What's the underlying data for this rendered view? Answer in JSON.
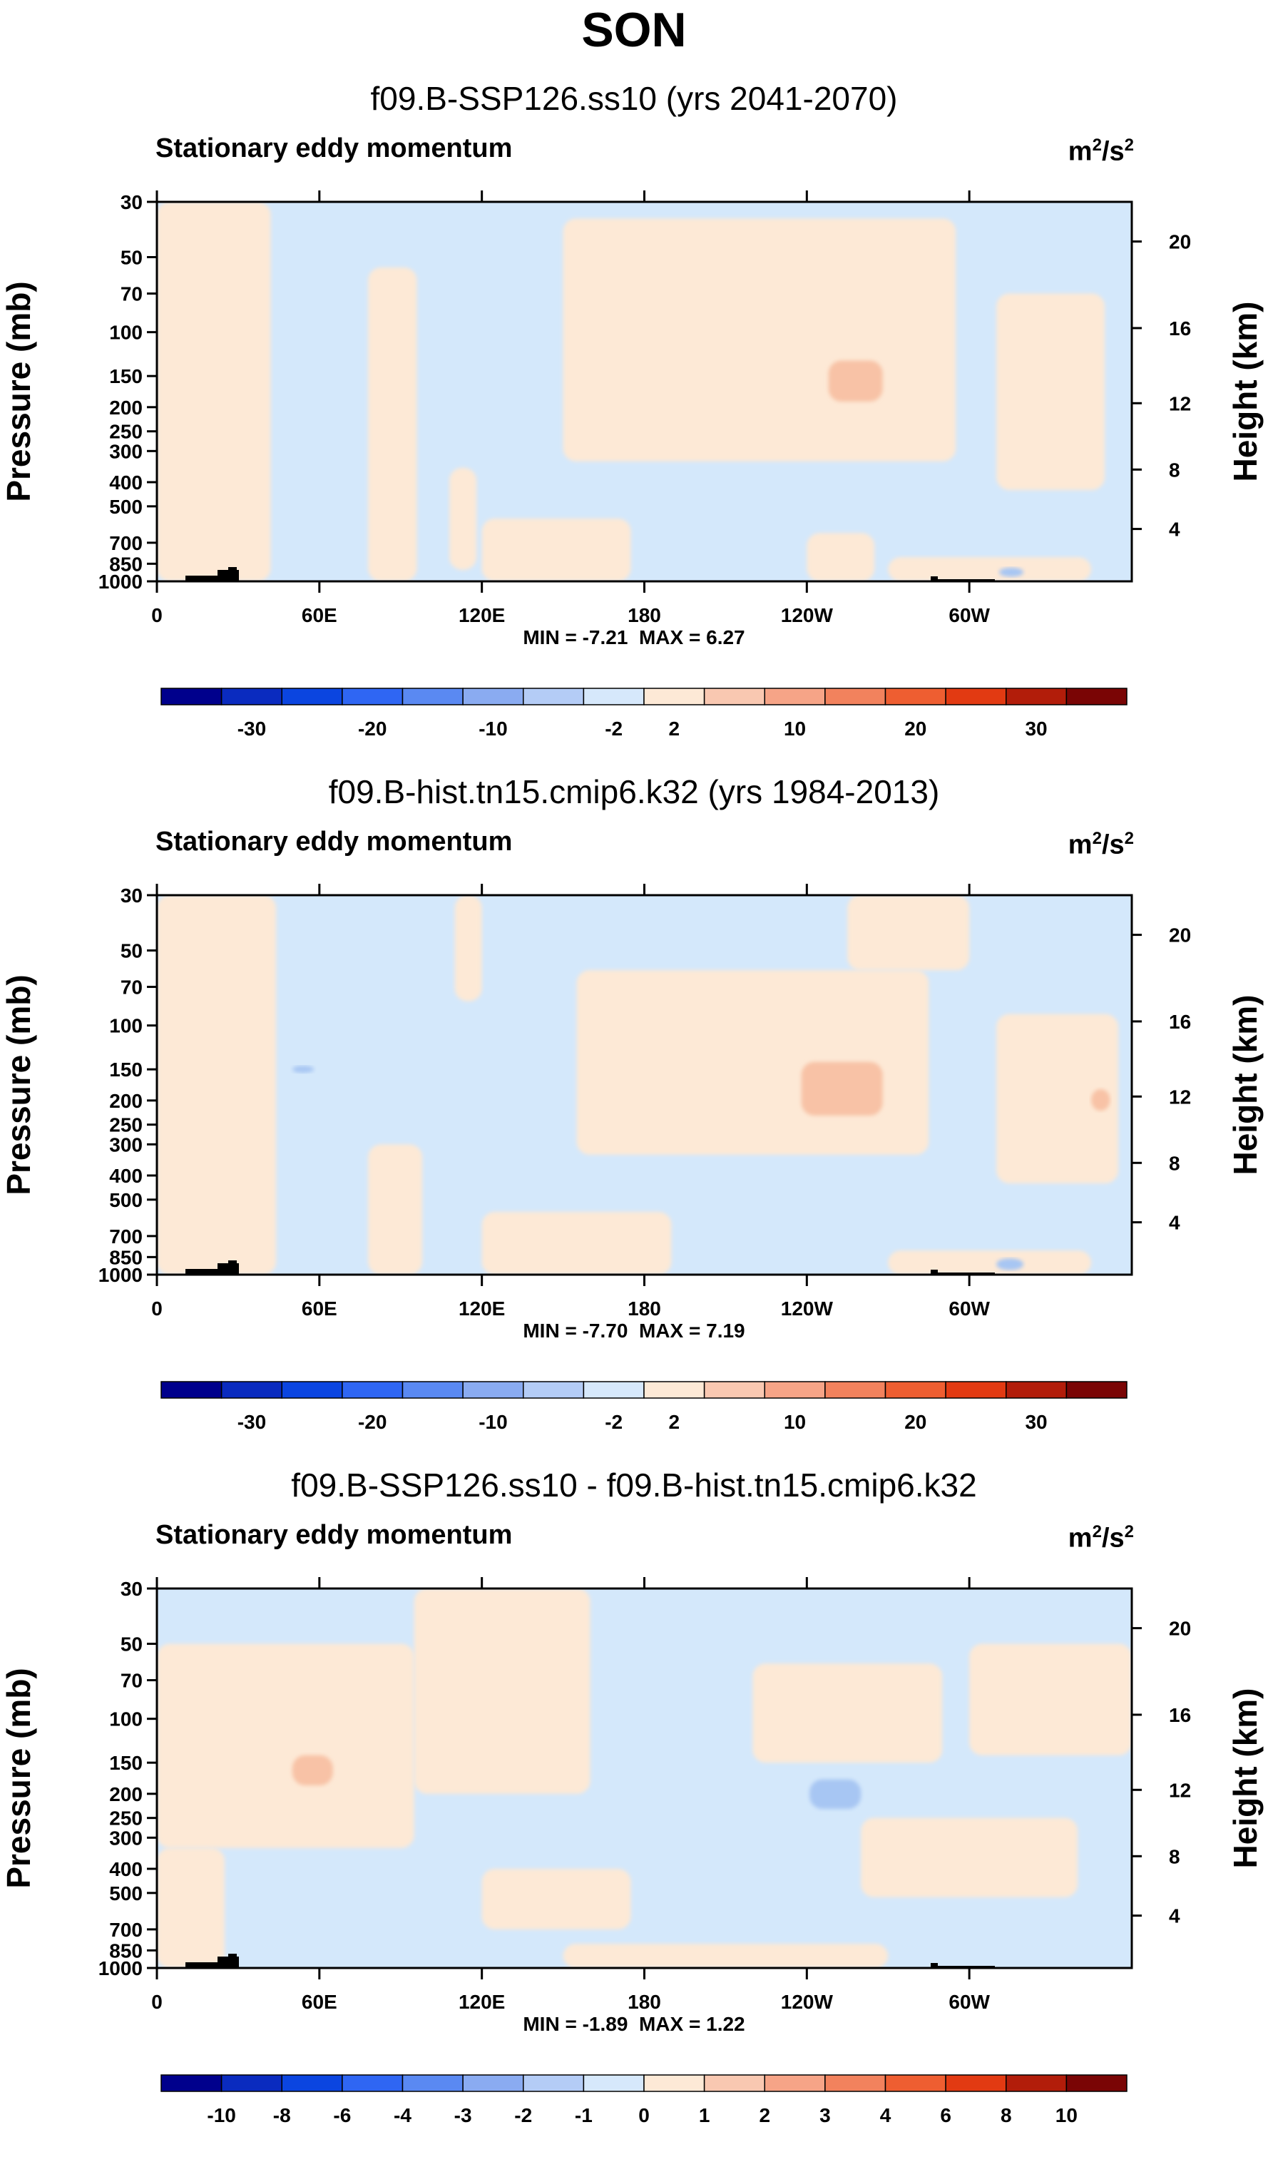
{
  "main_title": "SON",
  "colors": {
    "neg_fill": "#d4e8fb",
    "pos_fill": "#fde9d6",
    "neg_strong": "#a7c6f3",
    "pos_strong": "#f8c2a6",
    "terrain": "#000000"
  },
  "colorbar_colors": [
    "#00008c",
    "#0a2bbf",
    "#0b45e0",
    "#2f66f3",
    "#5a89f2",
    "#8aabf1",
    "#b4ccf6",
    "#d6e8fb",
    "#fde9d6",
    "#f9c8b1",
    "#f6a487",
    "#f2825d",
    "#ee5e31",
    "#e23a12",
    "#b21d0a",
    "#7a0505"
  ],
  "chart_data": [
    {
      "type": "heatmap",
      "title": "f09.B-SSP126.ss10 (yrs 2041-2070)",
      "variable": "Stationary eddy momentum",
      "units": "m",
      "units_sup1": "2",
      "units_mid": "/s",
      "units_sup2": "2",
      "xlabel": "",
      "ylabel": "Pressure (mb)",
      "ylabel_right": "Height (km)",
      "xticks": [
        "0",
        "60E",
        "120E",
        "180",
        "120W",
        "60W"
      ],
      "xtick_positions_deg": [
        0,
        60,
        120,
        180,
        240,
        300
      ],
      "xlim_deg": [
        0,
        360
      ],
      "yticks": [
        "30",
        "50",
        "70",
        "100",
        "150",
        "200",
        "250",
        "300",
        "400",
        "500",
        "700",
        "850",
        "1000"
      ],
      "yticks_right": [
        "20",
        "16",
        "12",
        "8",
        "4"
      ],
      "ylim_mb": [
        1000,
        30
      ],
      "min_label": "MIN = ",
      "min": "-7.21",
      "max_label": "MAX = ",
      "max": "6.27",
      "colorbar_levels": [
        "-30",
        "-20",
        "-10",
        "-2",
        "2",
        "10",
        "20",
        "30"
      ],
      "positive_regions": [
        {
          "lon": [
            0,
            42
          ],
          "p": [
            30,
            1000
          ]
        },
        {
          "lon": [
            78,
            96
          ],
          "p": [
            55,
            1000
          ]
        },
        {
          "lon": [
            108,
            118
          ],
          "p": [
            350,
            900
          ]
        },
        {
          "lon": [
            150,
            295
          ],
          "p": [
            35,
            330
          ]
        },
        {
          "lon": [
            120,
            175
          ],
          "p": [
            560,
            1000
          ]
        },
        {
          "lon": [
            240,
            265
          ],
          "p": [
            640,
            1000
          ]
        },
        {
          "lon": [
            310,
            350
          ],
          "p": [
            70,
            430
          ]
        },
        {
          "lon": [
            270,
            345
          ],
          "p": [
            800,
            1000
          ]
        }
      ],
      "strong_positive_regions": [
        {
          "lon": [
            248,
            268
          ],
          "p": [
            130,
            190
          ]
        }
      ],
      "strong_negative_regions": [
        {
          "lon": [
            311,
            320
          ],
          "p": [
            880,
            960
          ]
        }
      ]
    },
    {
      "type": "heatmap",
      "title": "f09.B-hist.tn15.cmip6.k32 (yrs 1984-2013)",
      "variable": "Stationary eddy momentum",
      "units": "m",
      "units_sup1": "2",
      "units_mid": "/s",
      "units_sup2": "2",
      "xlabel": "",
      "ylabel": "Pressure (mb)",
      "ylabel_right": "Height (km)",
      "xticks": [
        "0",
        "60E",
        "120E",
        "180",
        "120W",
        "60W"
      ],
      "xtick_positions_deg": [
        0,
        60,
        120,
        180,
        240,
        300
      ],
      "xlim_deg": [
        0,
        360
      ],
      "yticks": [
        "30",
        "50",
        "70",
        "100",
        "150",
        "200",
        "250",
        "300",
        "400",
        "500",
        "700",
        "850",
        "1000"
      ],
      "yticks_right": [
        "20",
        "16",
        "12",
        "8",
        "4"
      ],
      "ylim_mb": [
        1000,
        30
      ],
      "min_label": "MIN = ",
      "min": "-7.70",
      "max_label": "MAX = ",
      "max": "7.19",
      "colorbar_levels": [
        "-30",
        "-20",
        "-10",
        "-2",
        "2",
        "10",
        "20",
        "30"
      ],
      "positive_regions": [
        {
          "lon": [
            0,
            44
          ],
          "p": [
            30,
            1000
          ]
        },
        {
          "lon": [
            78,
            98
          ],
          "p": [
            300,
            1000
          ]
        },
        {
          "lon": [
            110,
            120
          ],
          "p": [
            30,
            80
          ]
        },
        {
          "lon": [
            155,
            285
          ],
          "p": [
            60,
            330
          ]
        },
        {
          "lon": [
            120,
            190
          ],
          "p": [
            560,
            1000
          ]
        },
        {
          "lon": [
            255,
            300
          ],
          "p": [
            30,
            60
          ]
        },
        {
          "lon": [
            310,
            355
          ],
          "p": [
            90,
            430
          ]
        },
        {
          "lon": [
            270,
            345
          ],
          "p": [
            800,
            1000
          ]
        }
      ],
      "strong_positive_regions": [
        {
          "lon": [
            238,
            268
          ],
          "p": [
            140,
            230
          ]
        },
        {
          "lon": [
            345,
            352
          ],
          "p": [
            180,
            220
          ]
        }
      ],
      "strong_negative_regions": [
        {
          "lon": [
            310,
            320
          ],
          "p": [
            860,
            960
          ]
        },
        {
          "lon": [
            50,
            58
          ],
          "p": [
            145,
            155
          ]
        }
      ]
    },
    {
      "type": "heatmap",
      "title": "f09.B-SSP126.ss10 - f09.B-hist.tn15.cmip6.k32",
      "variable": "Stationary eddy momentum",
      "units": "m",
      "units_sup1": "2",
      "units_mid": "/s",
      "units_sup2": "2",
      "xlabel": "",
      "ylabel": "Pressure (mb)",
      "ylabel_right": "Height (km)",
      "xticks": [
        "0",
        "60E",
        "120E",
        "180",
        "120W",
        "60W"
      ],
      "xtick_positions_deg": [
        0,
        60,
        120,
        180,
        240,
        300
      ],
      "xlim_deg": [
        0,
        360
      ],
      "yticks": [
        "30",
        "50",
        "70",
        "100",
        "150",
        "200",
        "250",
        "300",
        "400",
        "500",
        "700",
        "850",
        "1000"
      ],
      "yticks_right": [
        "20",
        "16",
        "12",
        "8",
        "4"
      ],
      "ylim_mb": [
        1000,
        30
      ],
      "min_label": "MIN = ",
      "min": "-1.89",
      "max_label": "MAX = ",
      "max": "1.22",
      "colorbar_levels": [
        "-10",
        "-8",
        "-6",
        "-4",
        "-3",
        "-2",
        "-1",
        "0",
        "1",
        "2",
        "3",
        "4",
        "6",
        "8",
        "10"
      ],
      "positive_regions": [
        {
          "lon": [
            0,
            95
          ],
          "p": [
            50,
            330
          ]
        },
        {
          "lon": [
            0,
            25
          ],
          "p": [
            330,
            1000
          ]
        },
        {
          "lon": [
            95,
            160
          ],
          "p": [
            30,
            200
          ]
        },
        {
          "lon": [
            120,
            175
          ],
          "p": [
            400,
            700
          ]
        },
        {
          "lon": [
            220,
            290
          ],
          "p": [
            60,
            150
          ]
        },
        {
          "lon": [
            260,
            340
          ],
          "p": [
            250,
            520
          ]
        },
        {
          "lon": [
            300,
            360
          ],
          "p": [
            50,
            140
          ]
        },
        {
          "lon": [
            150,
            270
          ],
          "p": [
            800,
            1000
          ]
        }
      ],
      "strong_positive_regions": [
        {
          "lon": [
            50,
            65
          ],
          "p": [
            140,
            185
          ]
        }
      ],
      "strong_negative_regions": [
        {
          "lon": [
            241,
            260
          ],
          "p": [
            175,
            230
          ]
        }
      ]
    }
  ]
}
